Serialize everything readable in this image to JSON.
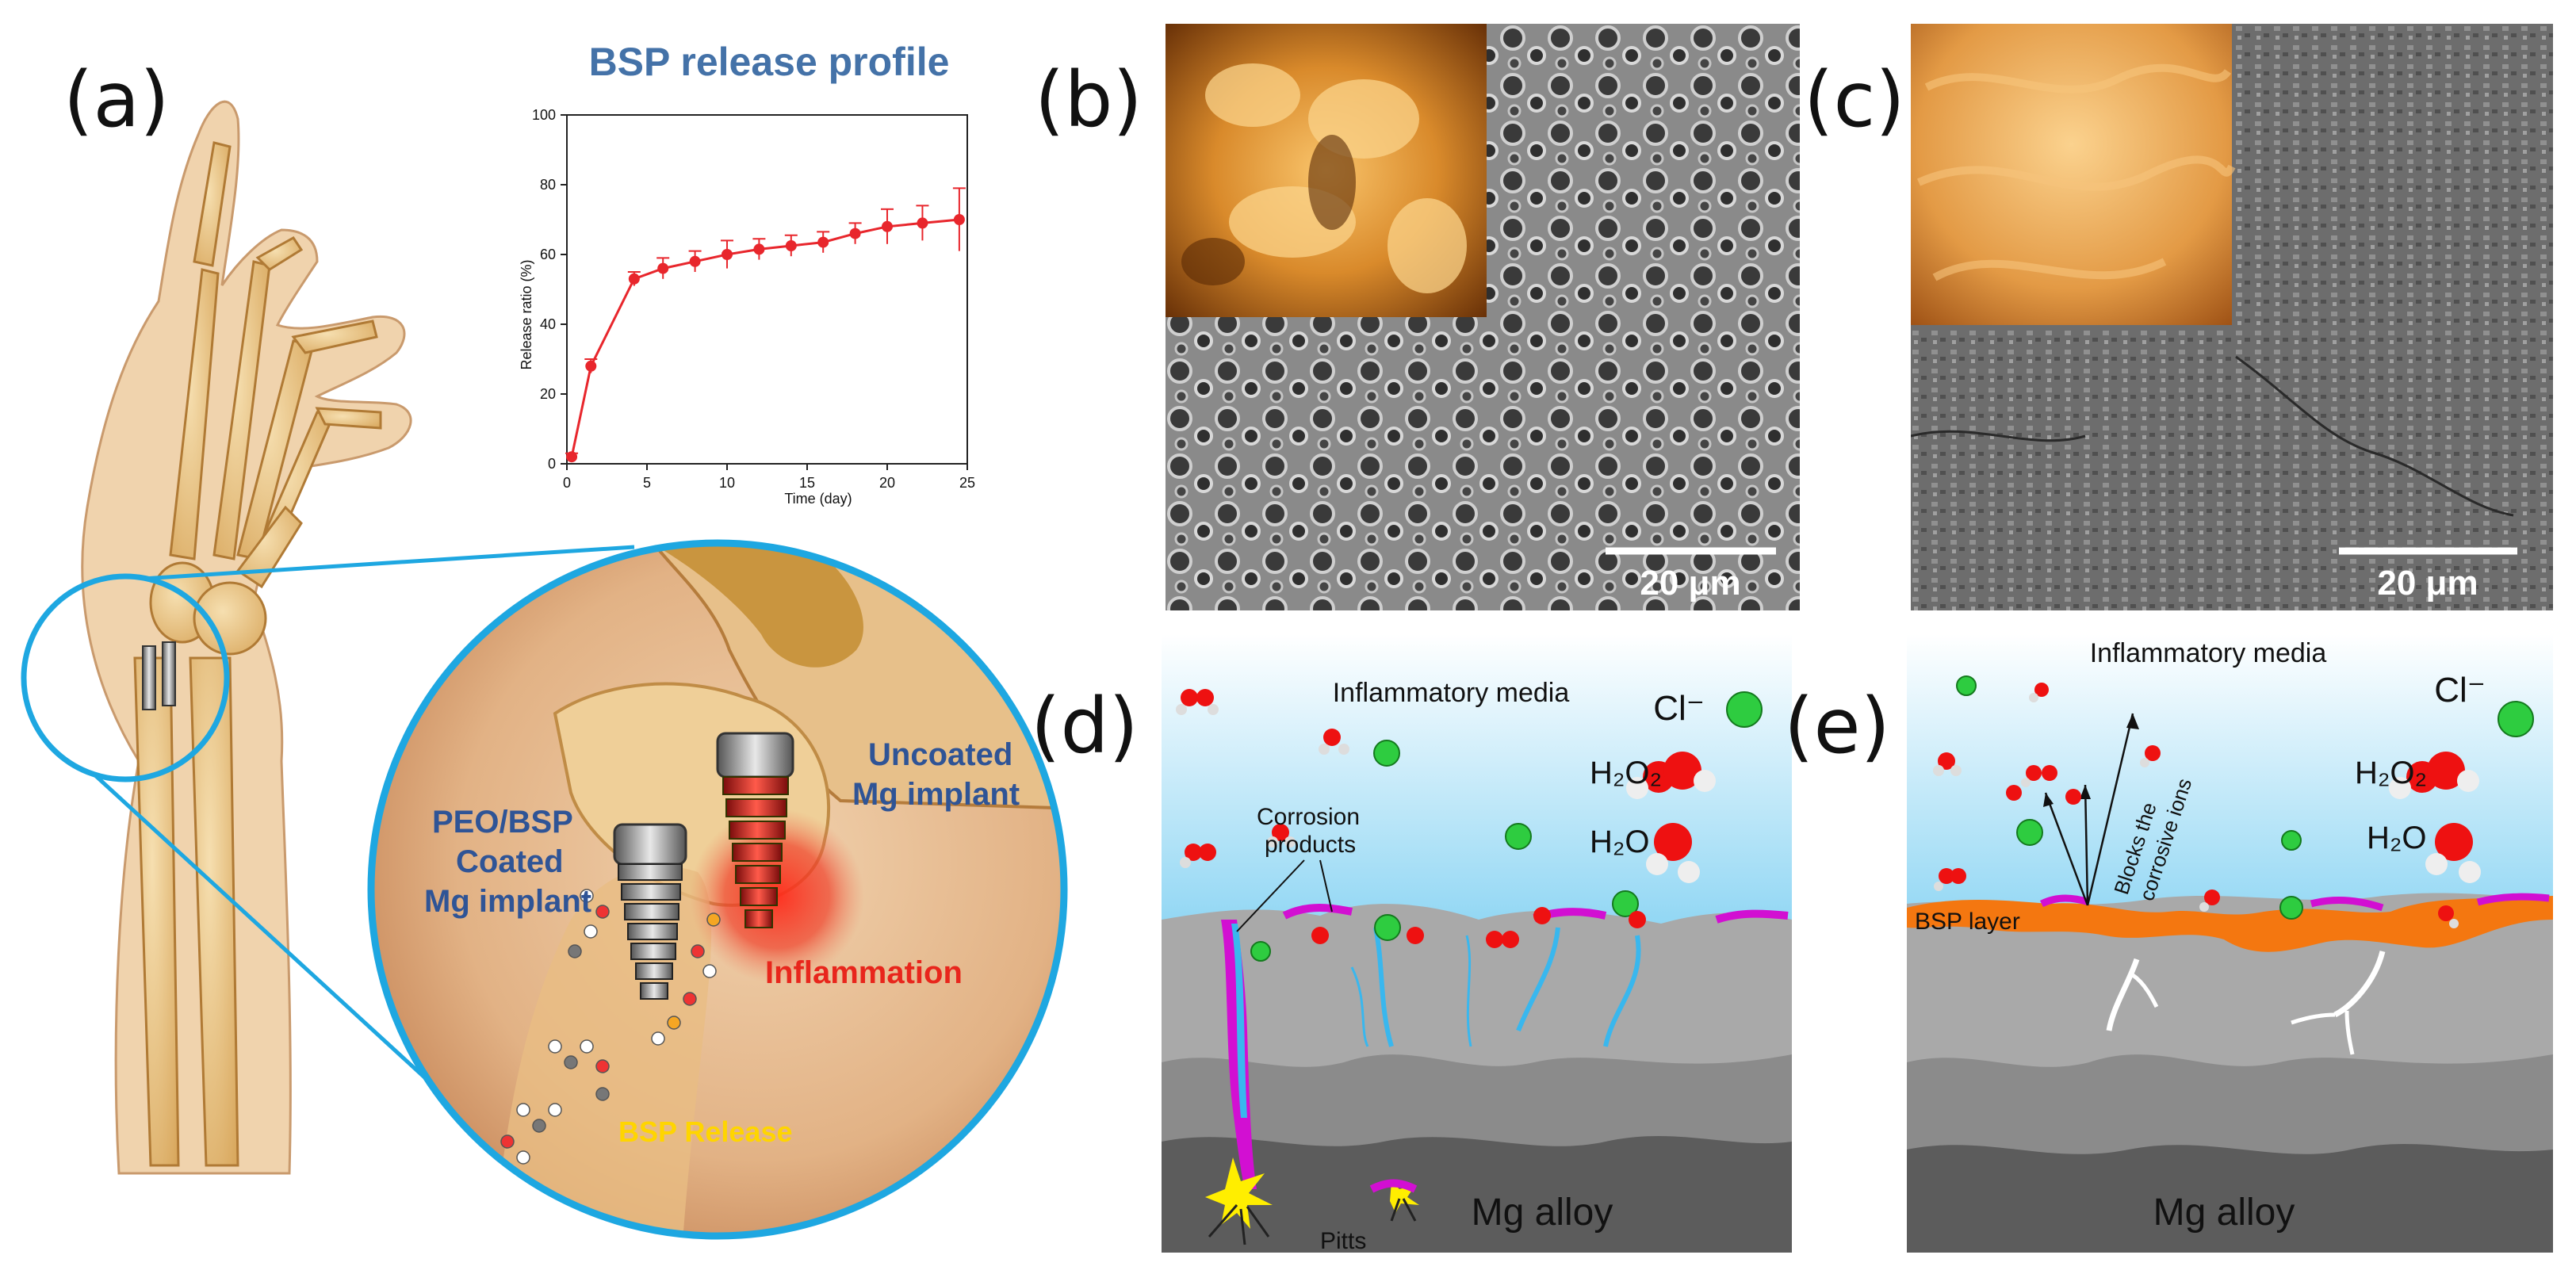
{
  "panels": {
    "a": "(a)",
    "b": "(b)",
    "c": "(c)",
    "d": "(d)",
    "e": "(e)"
  },
  "panel_a": {
    "labels": {
      "peo_bsp": [
        "PEO/BSP",
        "Coated",
        "Mg implant"
      ],
      "uncoated": [
        "Uncoated",
        "Mg implant"
      ],
      "inflammation": "Inflammation",
      "bsp_release": "BSP Release"
    },
    "colors": {
      "zoom_circle": "#1ea7e1",
      "label_blue": "#2f5496",
      "inflammation": "#e8261c",
      "bsp_release": "#ffd500"
    }
  },
  "chart_data": {
    "type": "line",
    "title": "BSP release profile",
    "xlabel": "Time (day)",
    "ylabel": "Release ratio (%)",
    "xlim": [
      0,
      25
    ],
    "ylim": [
      0,
      100
    ],
    "xticks": [
      0,
      5,
      10,
      15,
      20,
      25
    ],
    "yticks": [
      0,
      20,
      40,
      60,
      80,
      100
    ],
    "series": [
      {
        "x": [
          0.3,
          1.5,
          4.2,
          6,
          8,
          10,
          12,
          14,
          16,
          18,
          20,
          22.2,
          24.5
        ],
        "y": [
          2,
          28,
          53,
          56,
          58,
          60,
          61.5,
          62.5,
          63.5,
          66,
          68,
          69,
          70
        ],
        "err": [
          1,
          2,
          2,
          3,
          3,
          4,
          3,
          3,
          3,
          3,
          5,
          5,
          9
        ],
        "color": "#e8262c"
      }
    ],
    "grid": false
  },
  "panel_b": {
    "scale_bar": "20 μm"
  },
  "panel_c": {
    "scale_bar": "20 μm"
  },
  "panel_d": {
    "media": "Inflammatory media",
    "chloride": "Cl⁻",
    "h2o2": "H₂O₂",
    "h2o": "H₂O",
    "corrosion": [
      "Corrosion",
      "products"
    ],
    "pitts": "Pitts",
    "alloy": "Mg alloy"
  },
  "panel_e": {
    "media": "Inflammatory media",
    "chloride": "Cl⁻",
    "h2o2": "H₂O₂",
    "h2o": "H₂O",
    "bsp_layer": "BSP layer",
    "blocks": [
      "Blocks the",
      "corrosive ions"
    ],
    "alloy": "Mg alloy"
  }
}
